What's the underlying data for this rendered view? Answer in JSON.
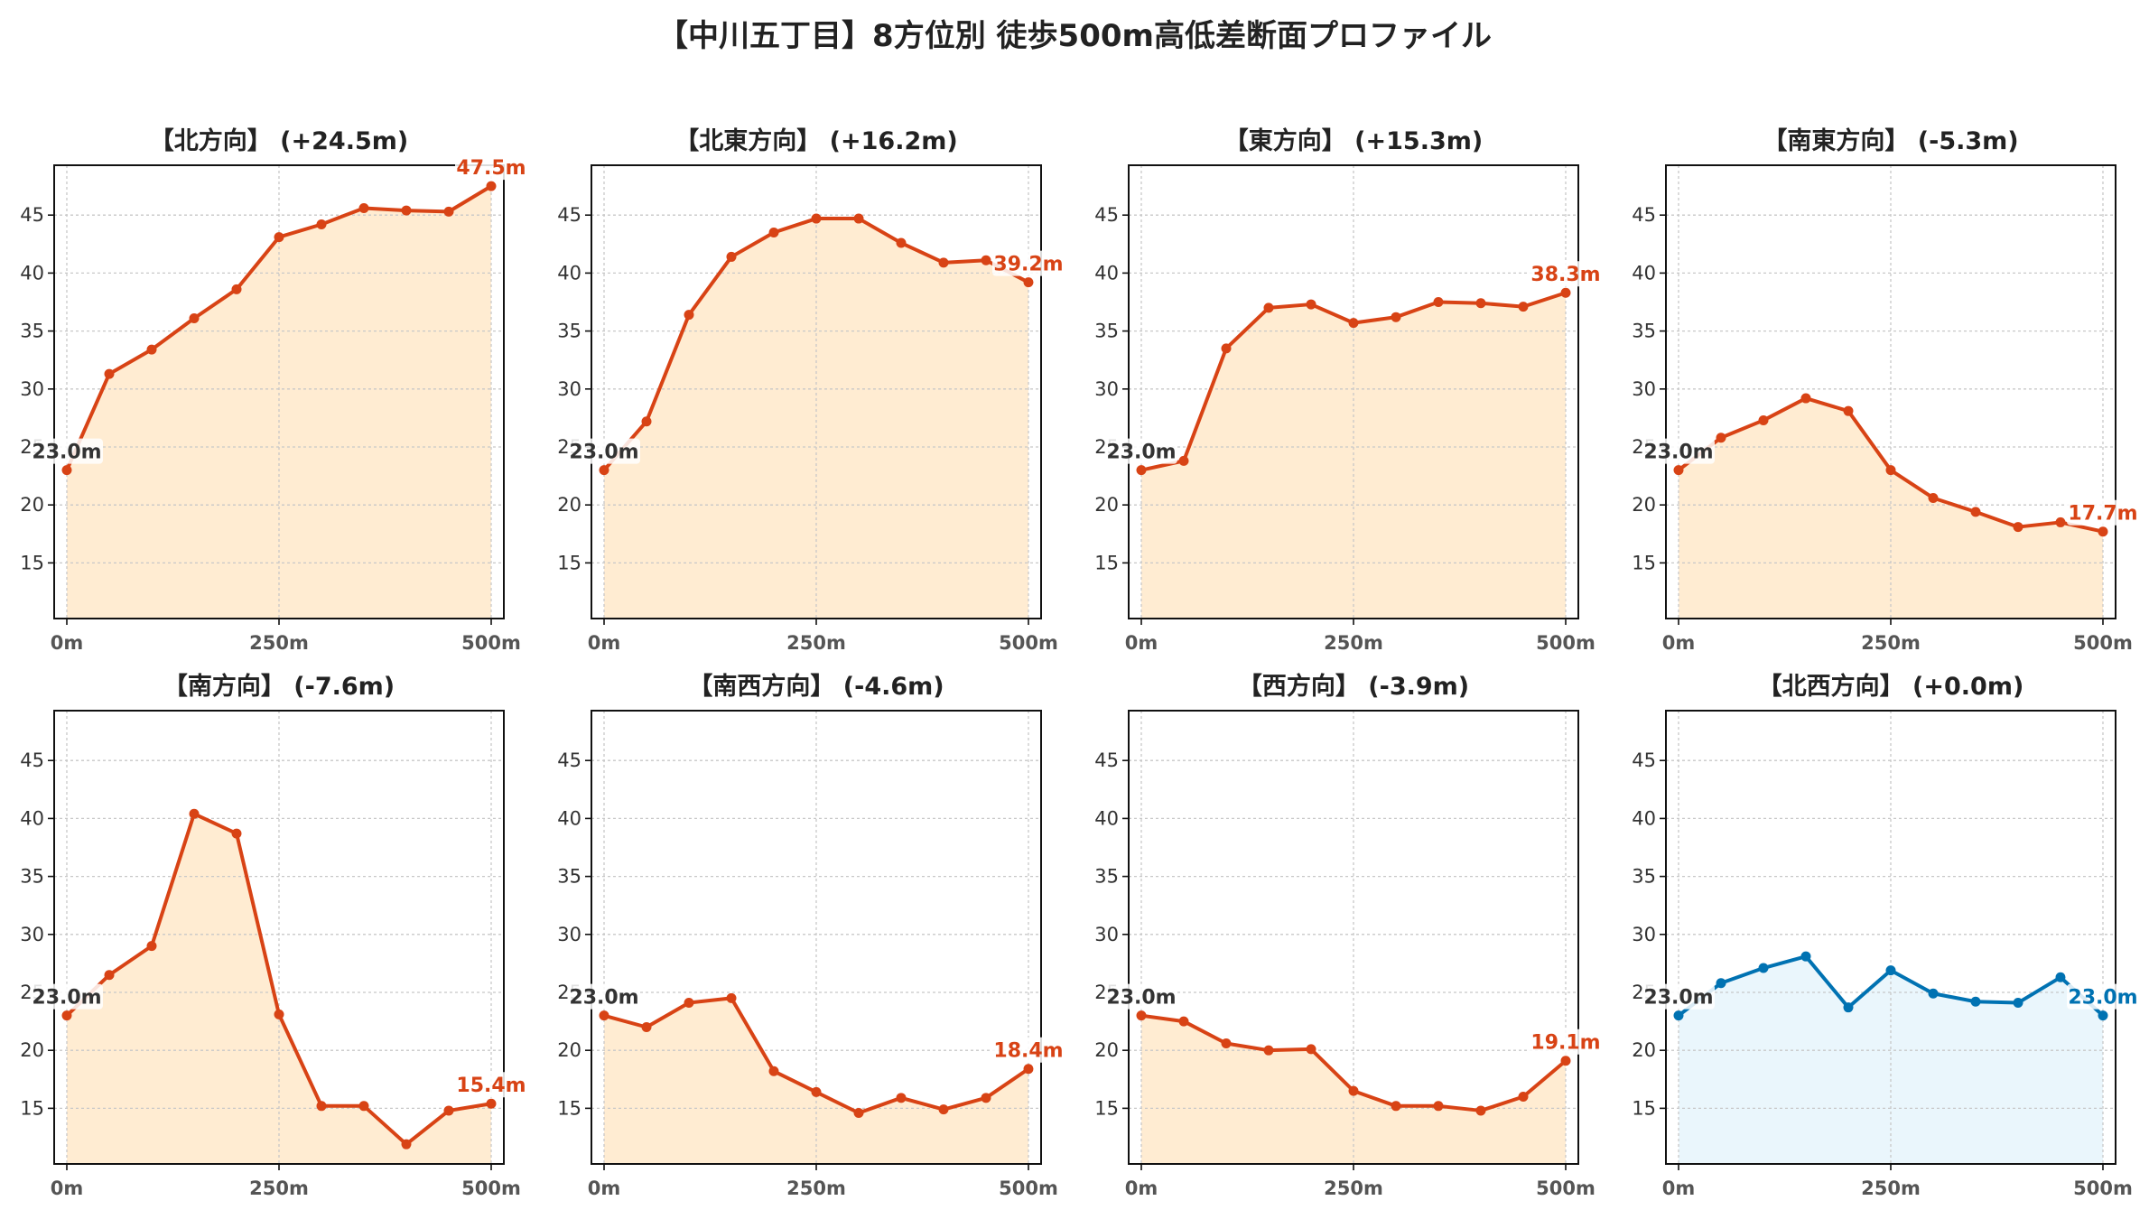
{
  "title": "【中川五丁目】8方位別 徒歩500m高低差断面プロファイル",
  "chart_data": [
    {
      "type": "line",
      "title": "【北方向】 (+24.5m)",
      "x": [
        0,
        50,
        100,
        150,
        200,
        250,
        300,
        350,
        400,
        450,
        500
      ],
      "values": [
        23.0,
        31.3,
        33.4,
        36.1,
        38.6,
        43.1,
        44.2,
        45.6,
        45.4,
        45.3,
        47.5
      ],
      "start_label": "23.0m",
      "end_label": "47.5m",
      "line_color": "#d84315",
      "fill_color": "#ffecd2",
      "xticks": [
        "0m",
        "250m",
        "500m"
      ],
      "yticks": [
        15,
        20,
        25,
        30,
        35,
        40,
        45
      ],
      "ylim": [
        10.2,
        49.3
      ],
      "grid": true
    },
    {
      "type": "line",
      "title": "【北東方向】 (+16.2m)",
      "x": [
        0,
        50,
        100,
        150,
        200,
        250,
        300,
        350,
        400,
        450,
        500
      ],
      "values": [
        23.0,
        27.2,
        36.4,
        41.4,
        43.5,
        44.7,
        44.7,
        42.6,
        40.9,
        41.1,
        39.2
      ],
      "start_label": "23.0m",
      "end_label": "39.2m",
      "line_color": "#d84315",
      "fill_color": "#ffecd2",
      "xticks": [
        "0m",
        "250m",
        "500m"
      ],
      "yticks": [
        15,
        20,
        25,
        30,
        35,
        40,
        45
      ],
      "ylim": [
        10.2,
        49.3
      ],
      "grid": true
    },
    {
      "type": "line",
      "title": "【東方向】 (+15.3m)",
      "x": [
        0,
        50,
        100,
        150,
        200,
        250,
        300,
        350,
        400,
        450,
        500
      ],
      "values": [
        23.0,
        23.8,
        33.5,
        37.0,
        37.3,
        35.7,
        36.2,
        37.5,
        37.4,
        37.1,
        38.3
      ],
      "start_label": "23.0m",
      "end_label": "38.3m",
      "line_color": "#d84315",
      "fill_color": "#ffecd2",
      "xticks": [
        "0m",
        "250m",
        "500m"
      ],
      "yticks": [
        15,
        20,
        25,
        30,
        35,
        40,
        45
      ],
      "ylim": [
        10.2,
        49.3
      ],
      "grid": true
    },
    {
      "type": "line",
      "title": "【南東方向】 (-5.3m)",
      "x": [
        0,
        50,
        100,
        150,
        200,
        250,
        300,
        350,
        400,
        450,
        500
      ],
      "values": [
        23.0,
        25.8,
        27.3,
        29.2,
        28.1,
        23.0,
        20.6,
        19.4,
        18.1,
        18.5,
        17.7
      ],
      "start_label": "23.0m",
      "end_label": "17.7m",
      "line_color": "#d84315",
      "fill_color": "#ffecd2",
      "xticks": [
        "0m",
        "250m",
        "500m"
      ],
      "yticks": [
        15,
        20,
        25,
        30,
        35,
        40,
        45
      ],
      "ylim": [
        10.2,
        49.3
      ],
      "grid": true
    },
    {
      "type": "line",
      "title": "【南方向】 (-7.6m)",
      "x": [
        0,
        50,
        100,
        150,
        200,
        250,
        300,
        350,
        400,
        450,
        500
      ],
      "values": [
        23.0,
        26.5,
        29.0,
        40.4,
        38.7,
        23.1,
        15.2,
        15.2,
        11.9,
        14.8,
        15.4
      ],
      "start_label": "23.0m",
      "end_label": "15.4m",
      "line_color": "#d84315",
      "fill_color": "#ffecd2",
      "xticks": [
        "0m",
        "250m",
        "500m"
      ],
      "yticks": [
        15,
        20,
        25,
        30,
        35,
        40,
        45
      ],
      "ylim": [
        10.2,
        49.3
      ],
      "grid": true
    },
    {
      "type": "line",
      "title": "【南西方向】 (-4.6m)",
      "x": [
        0,
        50,
        100,
        150,
        200,
        250,
        300,
        350,
        400,
        450,
        500
      ],
      "values": [
        23.0,
        22.0,
        24.1,
        24.5,
        18.2,
        16.4,
        14.6,
        15.9,
        14.9,
        15.9,
        18.4
      ],
      "start_label": "23.0m",
      "end_label": "18.4m",
      "line_color": "#d84315",
      "fill_color": "#ffecd2",
      "xticks": [
        "0m",
        "250m",
        "500m"
      ],
      "yticks": [
        15,
        20,
        25,
        30,
        35,
        40,
        45
      ],
      "ylim": [
        10.2,
        49.3
      ],
      "grid": true
    },
    {
      "type": "line",
      "title": "【西方向】 (-3.9m)",
      "x": [
        0,
        50,
        100,
        150,
        200,
        250,
        300,
        350,
        400,
        450,
        500
      ],
      "values": [
        23.0,
        22.5,
        20.6,
        20.0,
        20.1,
        16.5,
        15.2,
        15.2,
        14.8,
        16.0,
        19.1
      ],
      "start_label": "23.0m",
      "end_label": "19.1m",
      "line_color": "#d84315",
      "fill_color": "#ffecd2",
      "xticks": [
        "0m",
        "250m",
        "500m"
      ],
      "yticks": [
        15,
        20,
        25,
        30,
        35,
        40,
        45
      ],
      "ylim": [
        10.2,
        49.3
      ],
      "grid": true
    },
    {
      "type": "line",
      "title": "【北西方向】 (+0.0m)",
      "x": [
        0,
        50,
        100,
        150,
        200,
        250,
        300,
        350,
        400,
        450,
        500
      ],
      "values": [
        23.0,
        25.8,
        27.1,
        28.1,
        23.7,
        26.9,
        24.9,
        24.2,
        24.1,
        26.3,
        23.0
      ],
      "start_label": "23.0m",
      "end_label": "23.0m",
      "line_color": "#0072b2",
      "fill_color": "#eaf6fc",
      "xticks": [
        "0m",
        "250m",
        "500m"
      ],
      "yticks": [
        15,
        20,
        25,
        30,
        35,
        40,
        45
      ],
      "ylim": [
        10.2,
        49.3
      ],
      "grid": true
    }
  ]
}
